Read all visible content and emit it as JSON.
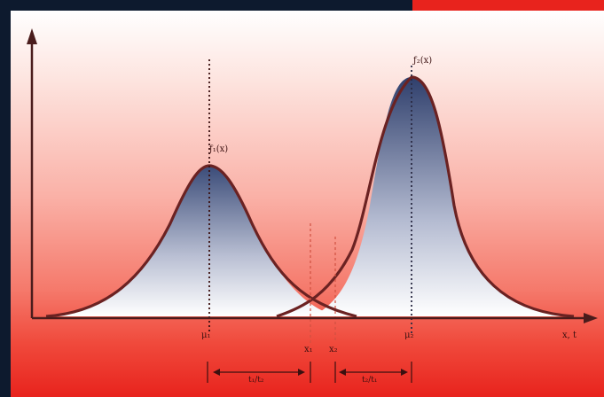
{
  "labels": {
    "curve_left": "ƒ₁(x)",
    "curve_right": "ƒ₂(x)",
    "mean_left": "μ₁",
    "mean_right": "μ₂",
    "threshold_a": "x₁",
    "threshold_b": "x₂",
    "x_axis": "x, t",
    "span_left": "t₁/t₂",
    "span_right": "t₂/t₁"
  },
  "colors": {
    "curve_stroke": "#6b2222",
    "fill_top": "#3a4b78",
    "fill_bottom": "#ffffff",
    "axis": "#4a1c1c",
    "frame_dark": "#0d1a2e",
    "frame_accent": "#e8231d"
  }
}
